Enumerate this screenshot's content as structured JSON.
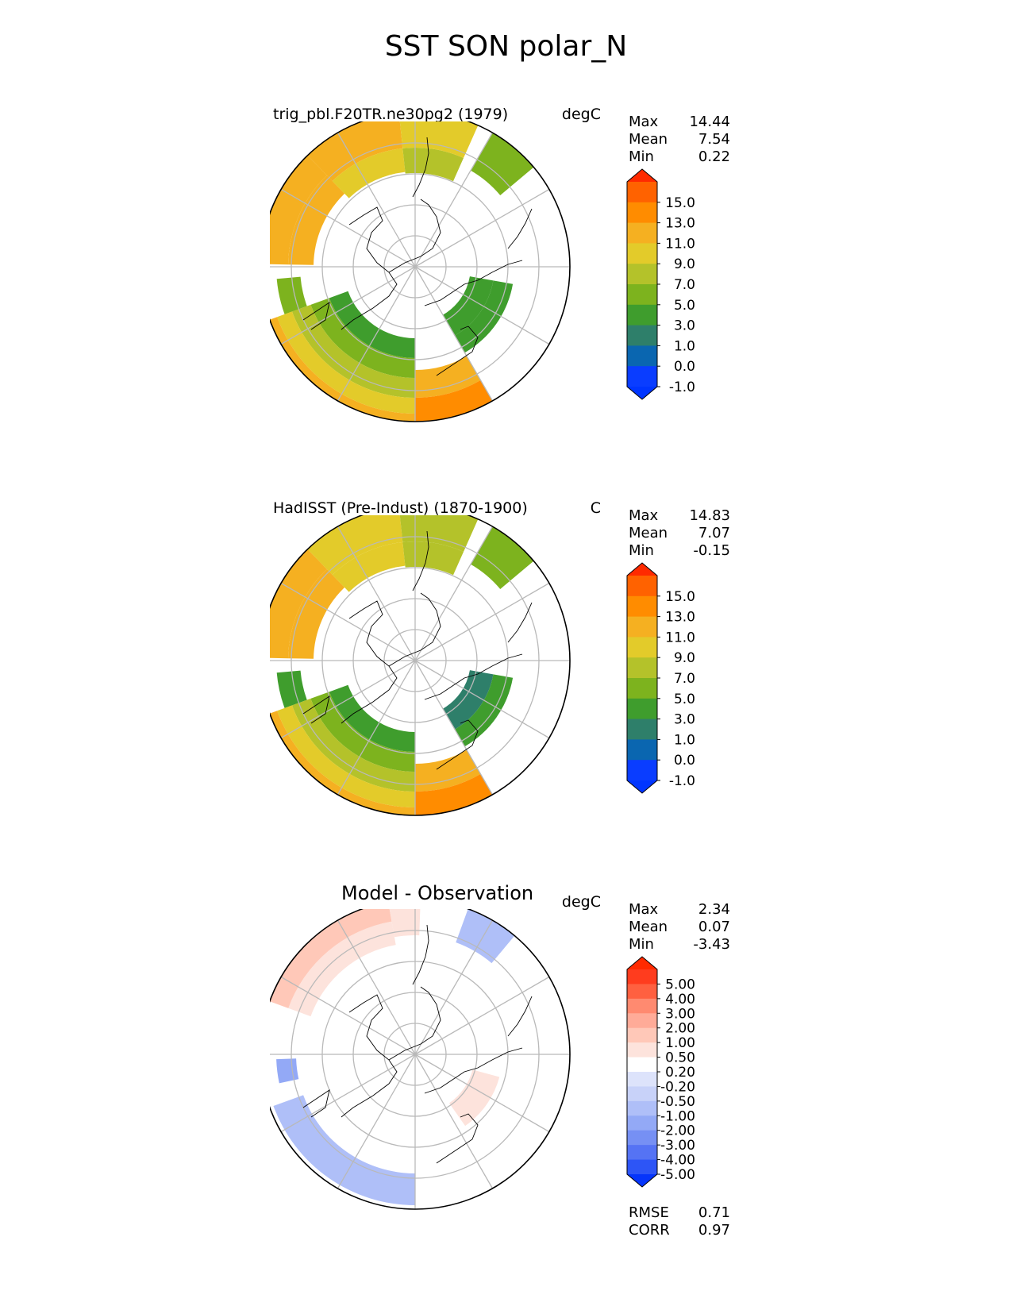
{
  "figure_title": "SST SON polar_N",
  "chart_data": [
    {
      "type": "polar-map",
      "projection": "north polar stereographic",
      "title": "trig_pbl.F20TR.ne30pg2 (1979)",
      "units": "degC",
      "stats": [
        {
          "label": "Max",
          "value": "14.44"
        },
        {
          "label": "Mean",
          "value": "7.54"
        },
        {
          "label": "Min",
          "value": "0.22"
        }
      ],
      "colorbar": {
        "levels": [
          "15.0",
          "13.0",
          "11.0",
          "9.0",
          "7.0",
          "5.0",
          "3.0",
          "1.0",
          "0.0",
          "-1.0"
        ],
        "colors": [
          "#ff2a00",
          "#ff6200",
          "#ff8c00",
          "#f5b021",
          "#e3cb2a",
          "#b4c22a",
          "#7db31e",
          "#3f9d2d",
          "#2e7f6a",
          "#0a66b0",
          "#0a3dff",
          "#0035ff"
        ]
      }
    },
    {
      "type": "polar-map",
      "projection": "north polar stereographic",
      "title": "HadISST (Pre-Indust) (1870-1900)",
      "units": "C",
      "stats": [
        {
          "label": "Max",
          "value": "14.83"
        },
        {
          "label": "Mean",
          "value": "7.07"
        },
        {
          "label": "Min",
          "value": "-0.15"
        }
      ],
      "colorbar": {
        "levels": [
          "15.0",
          "13.0",
          "11.0",
          "9.0",
          "7.0",
          "5.0",
          "3.0",
          "1.0",
          "0.0",
          "-1.0"
        ],
        "colors": [
          "#ff2a00",
          "#ff6200",
          "#ff8c00",
          "#f5b021",
          "#e3cb2a",
          "#b4c22a",
          "#7db31e",
          "#3f9d2d",
          "#2e7f6a",
          "#0a66b0",
          "#0a3dff",
          "#0035ff"
        ]
      }
    },
    {
      "type": "polar-map",
      "projection": "north polar stereographic",
      "title": "Model - Observation",
      "units": "degC",
      "stats": [
        {
          "label": "Max",
          "value": "2.34"
        },
        {
          "label": "Mean",
          "value": "0.07"
        },
        {
          "label": "Min",
          "value": "-3.43"
        }
      ],
      "extra_stats": [
        {
          "label": "RMSE",
          "value": "0.71"
        },
        {
          "label": "CORR",
          "value": "0.97"
        }
      ],
      "colorbar": {
        "levels": [
          "5.00",
          "4.00",
          "3.00",
          "2.00",
          "1.00",
          "0.50",
          "0.20",
          "-0.20",
          "-0.50",
          "-1.00",
          "-2.00",
          "-3.00",
          "-4.00",
          "-5.00"
        ],
        "colors": [
          "#ff2a00",
          "#ff3c1e",
          "#ff6040",
          "#ff8a70",
          "#ffab98",
          "#ffc8b8",
          "#fde3dc",
          "#ffffff",
          "#dde3fb",
          "#c8d2f9",
          "#afbff8",
          "#93a9f6",
          "#7690f4",
          "#5573f4",
          "#2d55f6",
          "#0535fb"
        ]
      }
    }
  ]
}
